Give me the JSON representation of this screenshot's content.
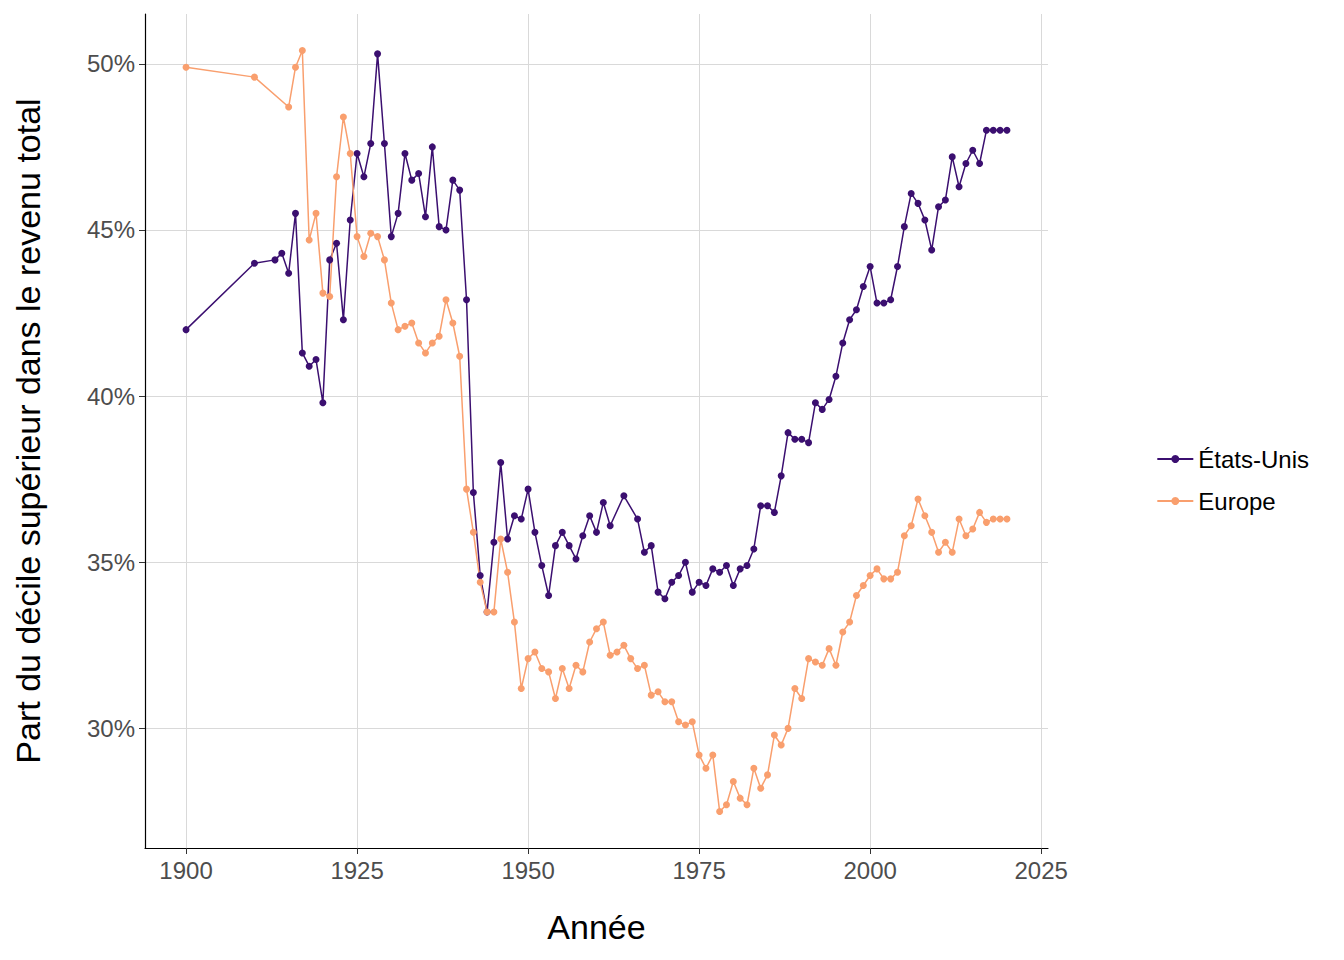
{
  "chart_data": {
    "type": "line",
    "x_label": "Année",
    "y_label": "Part du décile supérieur dans le revenu total",
    "xlim": [
      1894,
      2026
    ],
    "xticks": [
      1900,
      1925,
      1950,
      1975,
      2000,
      2025
    ],
    "ylim": [
      26.4,
      51.5
    ],
    "yticks": [
      {
        "value": 30,
        "label": "30%"
      },
      {
        "value": 35,
        "label": "35%"
      },
      {
        "value": 40,
        "label": "40%"
      },
      {
        "value": 45,
        "label": "45%"
      },
      {
        "value": 50,
        "label": "50%"
      }
    ],
    "grid": true,
    "legend": "right",
    "marker": "circle",
    "line_style": "solid",
    "series": [
      {
        "name": "États-Unis",
        "color": "#3b0f70",
        "x": [
          1900,
          1910,
          1913,
          1914,
          1915,
          1916,
          1917,
          1918,
          1919,
          1920,
          1921,
          1922,
          1923,
          1924,
          1925,
          1926,
          1927,
          1928,
          1929,
          1930,
          1931,
          1932,
          1933,
          1934,
          1935,
          1936,
          1937,
          1938,
          1939,
          1940,
          1941,
          1942,
          1943,
          1944,
          1945,
          1946,
          1947,
          1948,
          1949,
          1950,
          1951,
          1952,
          1953,
          1954,
          1955,
          1956,
          1957,
          1958,
          1959,
          1960,
          1961,
          1962,
          1964,
          1966,
          1967,
          1968,
          1969,
          1970,
          1971,
          1972,
          1973,
          1974,
          1975,
          1976,
          1977,
          1978,
          1979,
          1980,
          1981,
          1982,
          1983,
          1984,
          1985,
          1986,
          1987,
          1988,
          1989,
          1990,
          1991,
          1992,
          1993,
          1994,
          1995,
          1996,
          1997,
          1998,
          1999,
          2000,
          2001,
          2002,
          2003,
          2004,
          2005,
          2006,
          2007,
          2008,
          2009,
          2010,
          2011,
          2012,
          2013,
          2014,
          2015,
          2016,
          2017,
          2018,
          2019,
          2020
        ],
        "values": [
          42.0,
          44.0,
          44.1,
          44.3,
          43.7,
          45.5,
          41.3,
          40.9,
          41.1,
          39.8,
          44.1,
          44.6,
          42.3,
          45.3,
          47.3,
          46.6,
          47.6,
          50.3,
          47.6,
          44.8,
          45.5,
          47.3,
          46.5,
          46.7,
          45.4,
          47.5,
          45.1,
          45.0,
          46.5,
          46.2,
          42.9,
          37.1,
          34.6,
          33.5,
          35.6,
          38.0,
          35.7,
          36.4,
          36.3,
          37.2,
          35.9,
          34.9,
          34.0,
          35.5,
          35.9,
          35.5,
          35.1,
          35.8,
          36.4,
          35.9,
          36.8,
          36.1,
          37.0,
          36.3,
          35.3,
          35.5,
          34.1,
          33.9,
          34.4,
          34.6,
          35.0,
          34.1,
          34.4,
          34.3,
          34.8,
          34.7,
          34.9,
          34.3,
          34.8,
          34.9,
          35.4,
          36.7,
          36.7,
          36.5,
          37.6,
          38.9,
          38.7,
          38.7,
          38.6,
          39.8,
          39.6,
          39.9,
          40.6,
          41.6,
          42.3,
          42.6,
          43.3,
          43.9,
          42.8,
          42.8,
          42.9,
          43.9,
          45.1,
          46.1,
          45.8,
          45.3,
          44.4,
          45.7,
          45.9,
          47.2,
          46.3,
          47.0,
          47.4,
          47.0,
          48.0,
          48.0,
          48.0,
          48.0
        ]
      },
      {
        "name": "Europe",
        "color": "#f99f6e",
        "x": [
          1900,
          1910,
          1915,
          1916,
          1917,
          1918,
          1919,
          1920,
          1921,
          1922,
          1923,
          1924,
          1925,
          1926,
          1927,
          1928,
          1929,
          1930,
          1931,
          1932,
          1933,
          1934,
          1935,
          1936,
          1937,
          1938,
          1939,
          1940,
          1941,
          1942,
          1943,
          1944,
          1945,
          1946,
          1947,
          1948,
          1949,
          1950,
          1951,
          1952,
          1953,
          1954,
          1955,
          1956,
          1957,
          1958,
          1959,
          1960,
          1961,
          1962,
          1963,
          1964,
          1965,
          1966,
          1967,
          1968,
          1969,
          1970,
          1971,
          1972,
          1973,
          1974,
          1975,
          1976,
          1977,
          1978,
          1979,
          1980,
          1981,
          1982,
          1983,
          1984,
          1985,
          1986,
          1987,
          1988,
          1989,
          1990,
          1991,
          1992,
          1993,
          1994,
          1995,
          1996,
          1997,
          1998,
          1999,
          2000,
          2001,
          2002,
          2003,
          2004,
          2005,
          2006,
          2007,
          2008,
          2009,
          2010,
          2011,
          2012,
          2013,
          2014,
          2015,
          2016,
          2017,
          2018,
          2019,
          2020
        ],
        "values": [
          49.9,
          49.6,
          48.7,
          49.9,
          50.4,
          44.7,
          45.5,
          43.1,
          43.0,
          46.6,
          48.4,
          47.3,
          44.8,
          44.2,
          44.9,
          44.8,
          44.1,
          42.8,
          42.0,
          42.1,
          42.2,
          41.6,
          41.3,
          41.6,
          41.8,
          42.9,
          42.2,
          41.2,
          37.2,
          35.9,
          34.4,
          33.5,
          33.5,
          35.7,
          34.7,
          33.2,
          31.2,
          32.1,
          32.3,
          31.8,
          31.7,
          30.9,
          31.8,
          31.2,
          31.9,
          31.7,
          32.6,
          33.0,
          33.2,
          32.2,
          32.3,
          32.5,
          32.1,
          31.8,
          31.9,
          31.0,
          31.1,
          30.8,
          30.8,
          30.2,
          30.1,
          30.2,
          29.2,
          28.8,
          29.2,
          27.5,
          27.7,
          28.4,
          27.9,
          27.7,
          28.8,
          28.2,
          28.6,
          29.8,
          29.5,
          30.0,
          31.2,
          30.9,
          32.1,
          32.0,
          31.9,
          32.4,
          31.9,
          32.9,
          33.2,
          34.0,
          34.3,
          34.6,
          34.8,
          34.5,
          34.5,
          34.7,
          35.8,
          36.1,
          36.9,
          36.4,
          35.9,
          35.3,
          35.6,
          35.3,
          36.3,
          35.8,
          36.0,
          36.5,
          36.2,
          36.3,
          36.3,
          36.3
        ]
      }
    ]
  }
}
